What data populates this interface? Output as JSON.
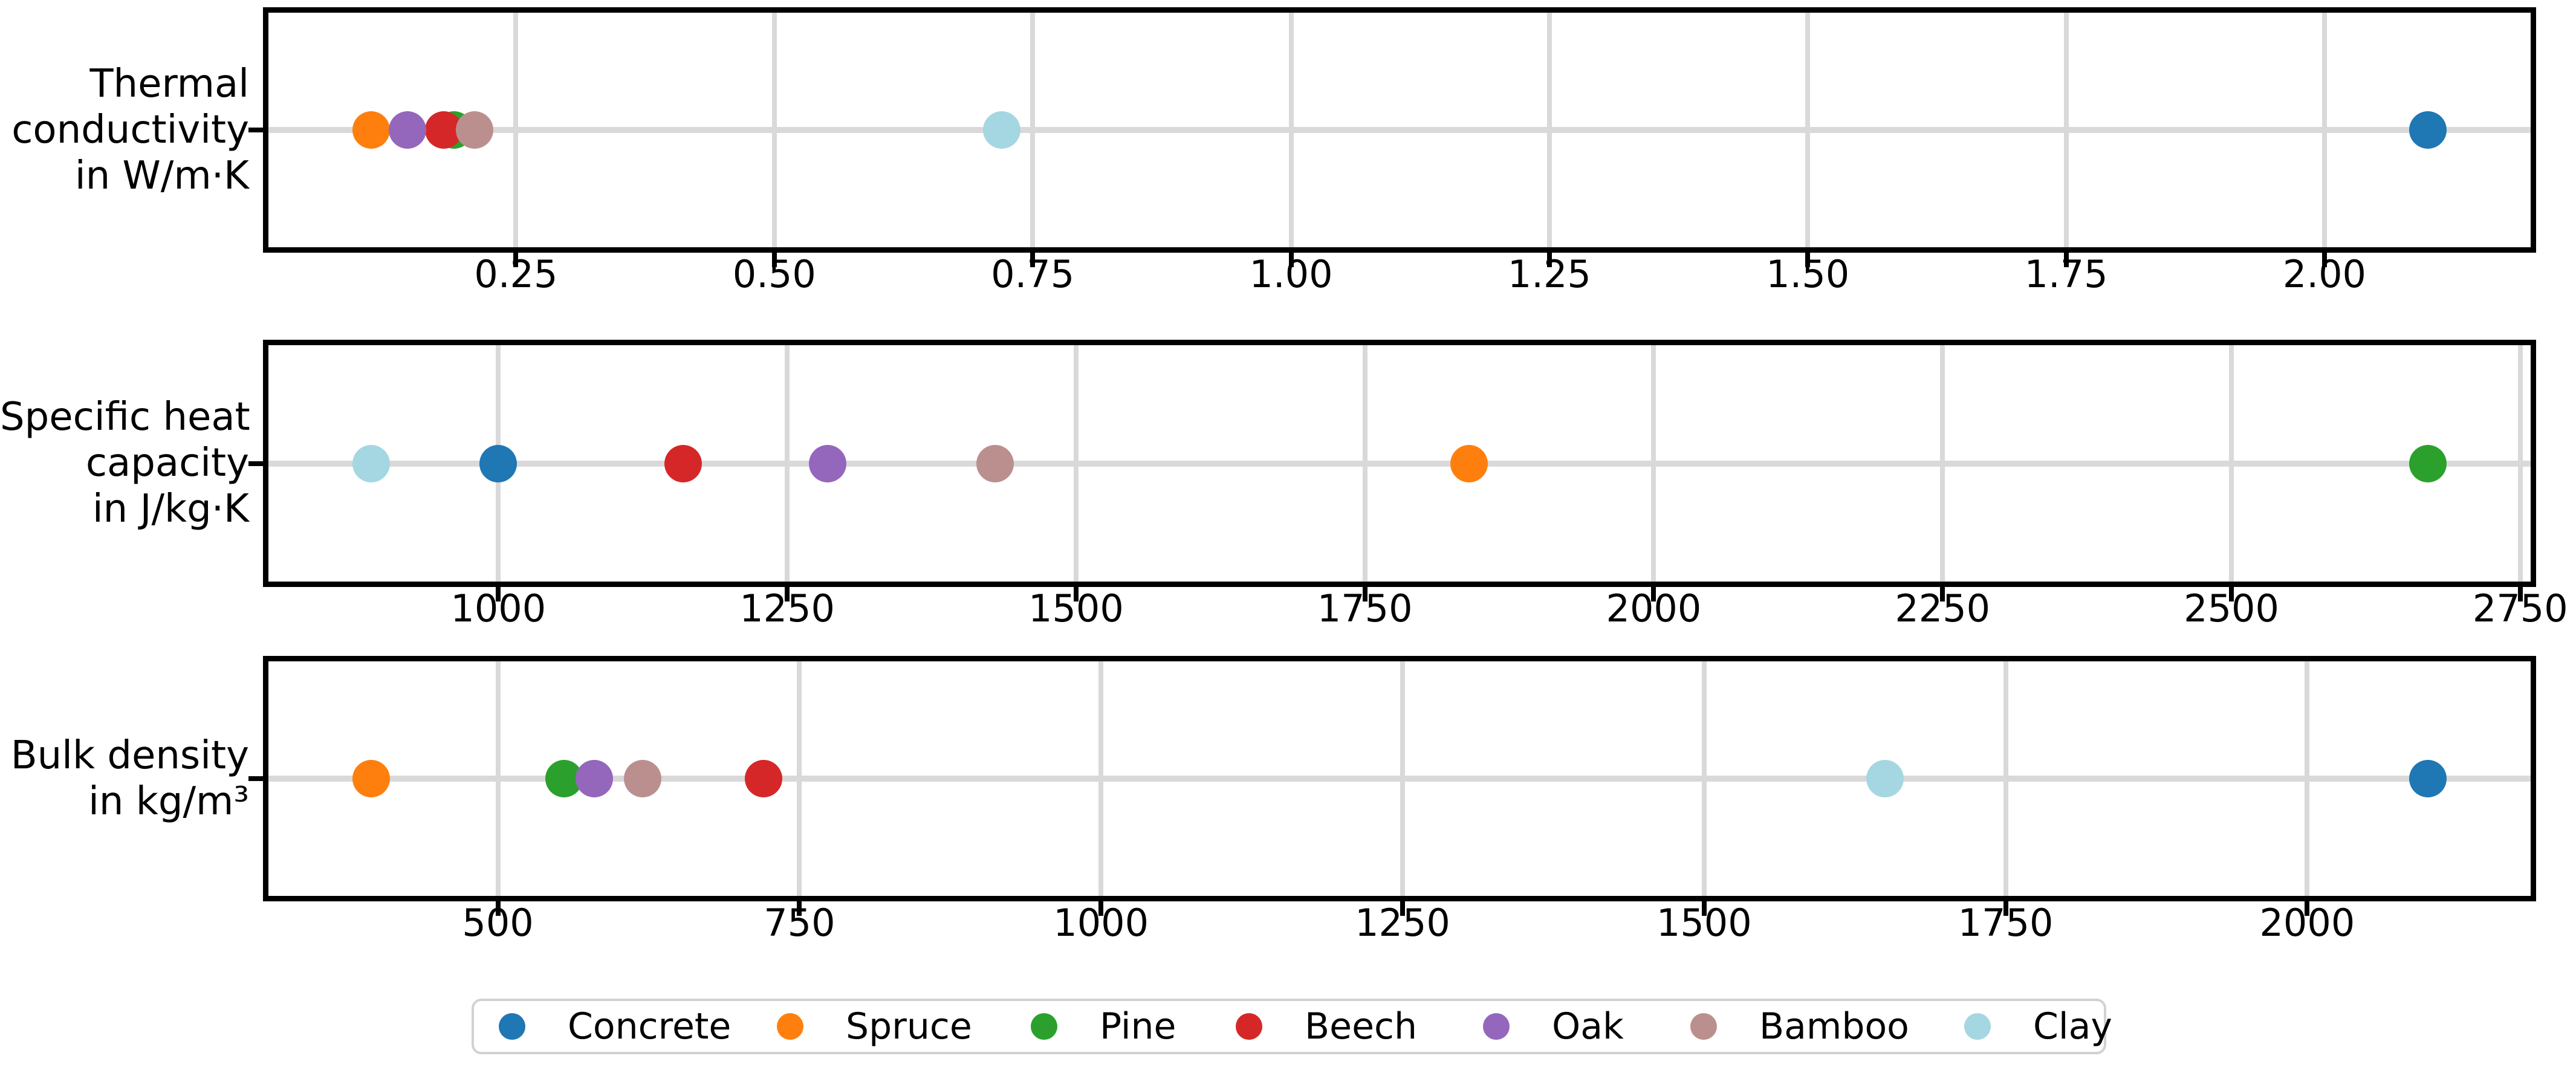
{
  "figure": {
    "background": "#ffffff",
    "grid_color": "#d9d9d9",
    "spine_color": "#000000",
    "text_color": "#000000"
  },
  "legend": {
    "position": "bottom",
    "items": [
      {
        "label": "Concrete",
        "color": "#1f77b4"
      },
      {
        "label": "Spruce",
        "color": "#ff7f0e"
      },
      {
        "label": "Pine",
        "color": "#2ca02c"
      },
      {
        "label": "Beech",
        "color": "#d62728"
      },
      {
        "label": "Oak",
        "color": "#9467bd"
      },
      {
        "label": "Bamboo",
        "color": "#bc8f8f"
      },
      {
        "label": "Clay",
        "color": "#a4d7e1"
      }
    ]
  },
  "chart_data": [
    {
      "type": "scatter",
      "orientation": "horizontal-dot-strip",
      "ylabel_lines": [
        "Thermal",
        "conductivity",
        "in W/m·K"
      ],
      "unit": "W/m·K",
      "grid": true,
      "xlim": [
        0.0105,
        2.1995
      ],
      "xtick_values": [
        0.25,
        0.5,
        0.75,
        1.0,
        1.25,
        1.5,
        1.75,
        2.0
      ],
      "xtick_labels": [
        "0.25",
        "0.50",
        "0.75",
        "1.00",
        "1.25",
        "1.50",
        "1.75",
        "2.00"
      ],
      "points": [
        {
          "material": "Concrete",
          "value": 2.1
        },
        {
          "material": "Spruce",
          "value": 0.11
        },
        {
          "material": "Pine",
          "value": 0.19
        },
        {
          "material": "Beech",
          "value": 0.18
        },
        {
          "material": "Oak",
          "value": 0.145
        },
        {
          "material": "Bamboo",
          "value": 0.21
        },
        {
          "material": "Clay",
          "value": 0.72
        }
      ]
    },
    {
      "type": "scatter",
      "orientation": "horizontal-dot-strip",
      "ylabel_lines": [
        "Specific heat",
        "capacity",
        "in J/kg·K"
      ],
      "unit": "J/kg·K",
      "grid": true,
      "xlim": [
        801,
        2759
      ],
      "xtick_values": [
        1000,
        1250,
        1500,
        1750,
        2000,
        2250,
        2500,
        2750
      ],
      "xtick_labels": [
        "1000",
        "1250",
        "1500",
        "1750",
        "2000",
        "2250",
        "2500",
        "2750"
      ],
      "points": [
        {
          "material": "Concrete",
          "value": 1000
        },
        {
          "material": "Spruce",
          "value": 1840
        },
        {
          "material": "Pine",
          "value": 2670
        },
        {
          "material": "Beech",
          "value": 1160
        },
        {
          "material": "Oak",
          "value": 1285
        },
        {
          "material": "Bamboo",
          "value": 1430
        },
        {
          "material": "Clay",
          "value": 890
        }
      ]
    },
    {
      "type": "scatter",
      "orientation": "horizontal-dot-strip",
      "ylabel_lines": [
        "Bulk density",
        "in kg/m³"
      ],
      "unit": "kg/m³",
      "grid": true,
      "xlim": [
        309.75,
        2185.25
      ],
      "xtick_values": [
        500,
        750,
        1000,
        1250,
        1500,
        1750,
        2000
      ],
      "xtick_labels": [
        "500",
        "750",
        "1000",
        "1250",
        "1500",
        "1750",
        "2000"
      ],
      "points": [
        {
          "material": "Concrete",
          "value": 2100
        },
        {
          "material": "Spruce",
          "value": 395
        },
        {
          "material": "Pine",
          "value": 555
        },
        {
          "material": "Beech",
          "value": 720
        },
        {
          "material": "Oak",
          "value": 580
        },
        {
          "material": "Bamboo",
          "value": 620
        },
        {
          "material": "Clay",
          "value": 1650
        }
      ]
    }
  ]
}
